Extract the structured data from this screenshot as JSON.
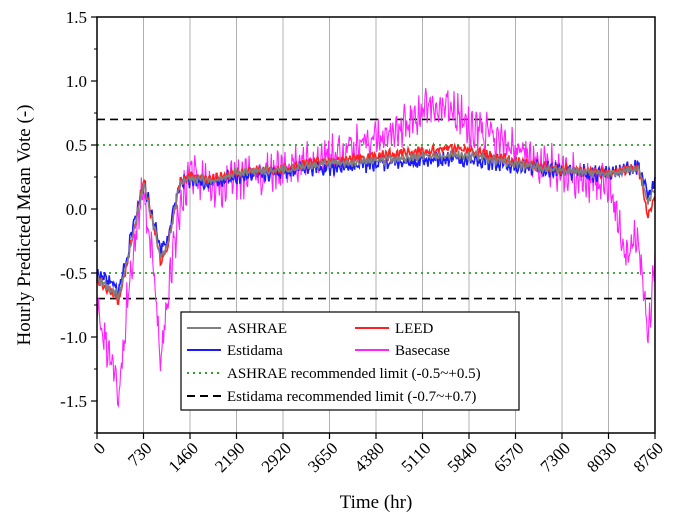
{
  "chart_data": {
    "type": "line",
    "title": "",
    "xlabel": "Time (hr)",
    "ylabel": "Hourly Predicted Mean Vote (-)",
    "xlim": [
      0,
      8760
    ],
    "ylim": [
      -1.75,
      1.5
    ],
    "x_ticks": [
      "0",
      "730",
      "1460",
      "2190",
      "2920",
      "3650",
      "4380",
      "5110",
      "5840",
      "6570",
      "7300",
      "8030",
      "8760"
    ],
    "y_ticks": [
      "1.5",
      "1.0",
      "0.5",
      "0.0",
      "-0.5",
      "-1.0",
      "-1.5"
    ],
    "grid": "vertical",
    "legend_position": "bottom-center",
    "x": [
      0,
      200,
      350,
      500,
      730,
      900,
      1000,
      1100,
      1300,
      1460,
      1800,
      2190,
      2600,
      2920,
      3300,
      3650,
      4000,
      4380,
      4700,
      5110,
      5500,
      5840,
      6200,
      6570,
      7000,
      7300,
      7700,
      8030,
      8300,
      8500,
      8650,
      8760
    ],
    "series": [
      {
        "name": "ASHRAE",
        "color": "#808080",
        "values": [
          -0.55,
          -0.62,
          -0.68,
          -0.35,
          0.2,
          -0.15,
          -0.38,
          -0.3,
          0.2,
          0.25,
          0.22,
          0.28,
          0.3,
          0.3,
          0.34,
          0.35,
          0.36,
          0.38,
          0.39,
          0.41,
          0.42,
          0.42,
          0.39,
          0.35,
          0.32,
          0.3,
          0.28,
          0.27,
          0.3,
          0.32,
          0.05,
          0.18
        ]
      },
      {
        "name": "LEED",
        "color": "#ff2020",
        "values": [
          -0.55,
          -0.63,
          -0.72,
          -0.36,
          0.22,
          -0.16,
          -0.42,
          -0.32,
          0.21,
          0.26,
          0.23,
          0.28,
          0.31,
          0.31,
          0.36,
          0.37,
          0.39,
          0.41,
          0.43,
          0.45,
          0.47,
          0.46,
          0.42,
          0.37,
          0.33,
          0.31,
          0.29,
          0.28,
          0.31,
          0.33,
          -0.05,
          0.1
        ]
      },
      {
        "name": "Estidama",
        "color": "#1a1aff",
        "values": [
          -0.52,
          -0.58,
          -0.62,
          -0.3,
          0.22,
          -0.12,
          -0.32,
          -0.25,
          0.21,
          0.22,
          0.2,
          0.26,
          0.28,
          0.29,
          0.32,
          0.33,
          0.34,
          0.36,
          0.37,
          0.38,
          0.39,
          0.39,
          0.37,
          0.34,
          0.31,
          0.3,
          0.28,
          0.27,
          0.31,
          0.33,
          0.1,
          0.22
        ]
      },
      {
        "name": "Basecase",
        "color": "#ff22ff",
        "values": [
          -0.75,
          -1.15,
          -1.45,
          -0.55,
          0.18,
          -0.5,
          -1.2,
          -0.7,
          0.0,
          0.3,
          0.15,
          0.22,
          0.28,
          0.32,
          0.38,
          0.42,
          0.48,
          0.55,
          0.62,
          0.75,
          0.82,
          0.65,
          0.55,
          0.45,
          0.35,
          0.3,
          0.22,
          0.2,
          -0.35,
          -0.2,
          -0.95,
          -0.4
        ]
      }
    ],
    "reference_lines": [
      {
        "name": "ASHRAE recommended limit (-0.5~+0.5)",
        "values": [
          -0.5,
          0.5
        ],
        "color": "#2ca02c",
        "style": "dotted"
      },
      {
        "name": "Estidama recommended limit (-0.7~+0.7)",
        "values": [
          -0.7,
          0.7
        ],
        "color": "#000000",
        "style": "dashed"
      }
    ]
  }
}
